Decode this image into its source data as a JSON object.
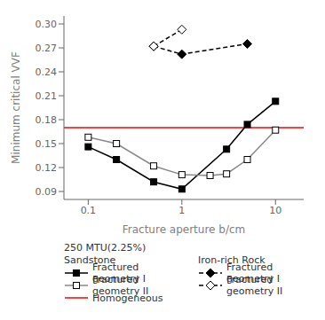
{
  "chart_data": {
    "type": "line",
    "xlabel": "Fracture aperture b/cm",
    "ylabel": "Minimum critical VVF",
    "log": "x",
    "xlim": [
      0.055,
      20
    ],
    "xticks": [
      0.1,
      1,
      10
    ],
    "ylim": [
      0.08,
      0.31
    ],
    "yticks": [
      0.09,
      0.12,
      0.15,
      0.18,
      0.21,
      0.24,
      0.27,
      {
        "value": 0.3,
        "label": "0.30"
      }
    ],
    "legend": "bottom",
    "annotations": [
      "250 MTU(2.25%)",
      "Sandstone",
      "Iron-rich Rock"
    ],
    "series": [
      {
        "name": "Fractured geometry I",
        "x": [
          0.1,
          0.2,
          0.5,
          1.0,
          3.0,
          5.0,
          10.0
        ],
        "values": [
          0.146,
          0.13,
          0.102,
          0.093,
          0.143,
          0.174,
          0.203
        ],
        "color": "#000000",
        "marker": "square",
        "line_style": "solid"
      },
      {
        "name": "Fractured geometry II",
        "x": [
          0.1,
          0.2,
          0.5,
          1.0,
          2.0,
          3.0,
          5.0,
          10.0
        ],
        "values": [
          0.158,
          0.15,
          0.122,
          0.111,
          0.11,
          0.112,
          0.13,
          0.167
        ],
        "color": "#888888",
        "marker": "open_square",
        "line_style": "solid"
      },
      {
        "name": "Homogeneous",
        "type": "hline",
        "values": [
          0.17
        ],
        "color": "#ff0000",
        "line_style": "solid"
      },
      {
        "name": "Fractured geometry I",
        "x": [
          0.5,
          1.0,
          5.0
        ],
        "values": [
          0.272,
          0.262,
          0.275
        ],
        "color": "#000000",
        "marker": "diamond",
        "line_style": "dashed"
      },
      {
        "name": "Fractured geometry II",
        "x": [
          0.5,
          1.0
        ],
        "values": [
          0.272,
          0.293
        ],
        "color": "#000000",
        "marker": "open_diamond",
        "line_style": "dashed"
      }
    ]
  }
}
